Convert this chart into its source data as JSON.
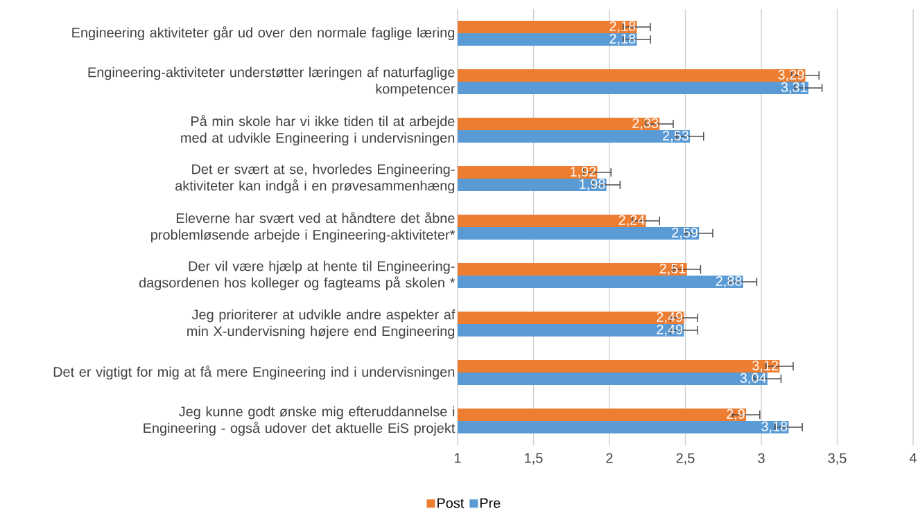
{
  "chart_data": {
    "type": "bar",
    "orientation": "horizontal",
    "categories": [
      "Engineering aktiviteter går ud over den normale faglige læring",
      "Engineering-aktiviteter understøtter læringen af naturfaglige kompetencer",
      "På min skole har vi ikke tiden til at arbejde med at udvikle Engineering i undervisningen",
      "Det er svært at se, hvorledes Engineering-aktiviteter kan indgå i en prøvesammenhæng",
      "Eleverne har svært ved at håndtere det åbne problemløsende arbejde i Engineering-aktiviteter*",
      "Der vil være hjælp at hente til Engineering-dagsordenen hos kolleger og fagteams på skolen *",
      "Jeg prioriterer at udvikle andre aspekter af min X-undervisning højere end Engineering",
      "Det er vigtigt for mig at få mere Engineering ind i undervisningen",
      "Jeg kunne godt ønske mig efteruddannelse i Engineering - også udover det aktuelle EiS projekt"
    ],
    "series": [
      {
        "name": "Post",
        "color": "#ed7d31",
        "values": [
          2.18,
          3.29,
          2.33,
          1.92,
          2.24,
          2.51,
          2.49,
          3.12,
          2.9
        ],
        "value_labels": [
          "2,18",
          "3,29",
          "2,33",
          "1,92",
          "2,24",
          "2,51",
          "2,49",
          "3,12",
          "2,9"
        ],
        "errors": [
          0.09,
          0.09,
          0.09,
          0.09,
          0.09,
          0.09,
          0.09,
          0.09,
          0.09
        ]
      },
      {
        "name": "Pre",
        "color": "#5b9bd5",
        "values": [
          2.18,
          3.31,
          2.53,
          1.98,
          2.59,
          2.88,
          2.49,
          3.04,
          3.18
        ],
        "value_labels": [
          "2,18",
          "3,31",
          "2,53",
          "1,98",
          "2,59",
          "2,88",
          "2,49",
          "3,04",
          "3,18"
        ],
        "errors": [
          0.09,
          0.09,
          0.09,
          0.09,
          0.09,
          0.09,
          0.09,
          0.09,
          0.09
        ]
      }
    ],
    "xlim": [
      1,
      4
    ],
    "xticks": [
      1,
      {
        "value": 1.5,
        "label": "1,5"
      },
      2,
      {
        "value": 2.5,
        "label": "2,5"
      },
      3,
      {
        "value": 3.5,
        "label": "3,5"
      },
      4
    ],
    "grid": "x",
    "legend": "bottom"
  }
}
